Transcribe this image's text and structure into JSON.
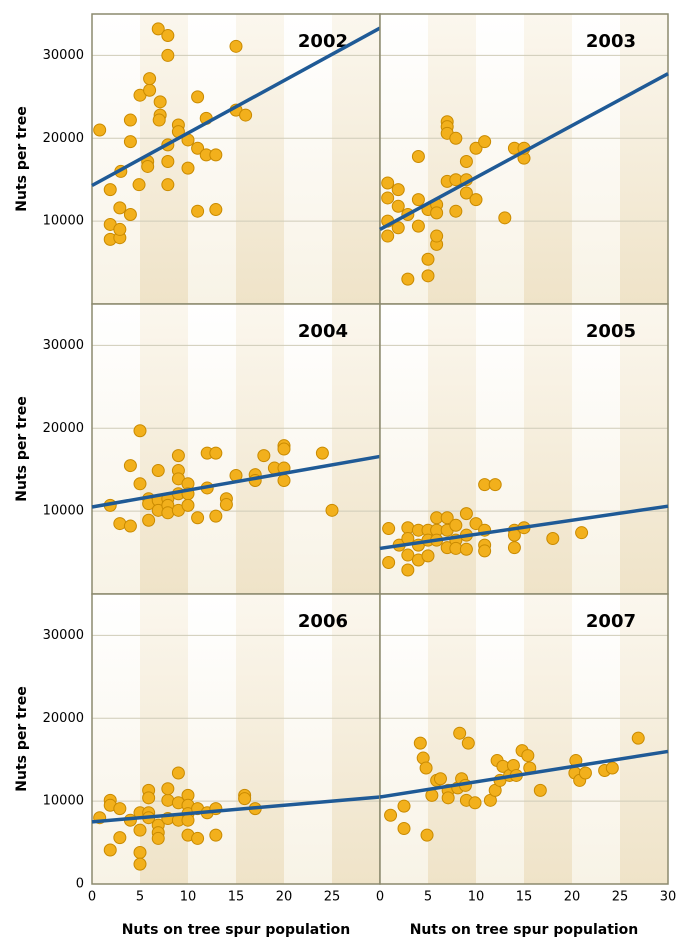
{
  "chart_data": [
    {
      "type": "scatter",
      "title": "2002",
      "ylabel": "Nuts per tree",
      "color": "#f2b01c",
      "grid": true,
      "xlim": [
        0,
        30
      ],
      "ylim": [
        0,
        35000
      ],
      "yticks": [
        10000,
        20000,
        30000
      ],
      "x": [
        0.8,
        1.9,
        1.9,
        1.9,
        2.9,
        2.9,
        2.9,
        3,
        4,
        4,
        4,
        4.9,
        5,
        5.8,
        5.8,
        6,
        6,
        6.9,
        7.1,
        7.1,
        7,
        7.9,
        7.9,
        7.9,
        7.9,
        7.9,
        9,
        9,
        10,
        10,
        11,
        11,
        11,
        11.9,
        11.9,
        12.9,
        12.9,
        15,
        15,
        16
      ],
      "values": [
        21000,
        13800,
        9600,
        7800,
        8000,
        9000,
        11600,
        16000,
        10800,
        22200,
        19600,
        14400,
        25200,
        17200,
        16600,
        25800,
        27200,
        33200,
        24400,
        22800,
        22200,
        32400,
        30000,
        14400,
        17200,
        19200,
        21600,
        20800,
        19800,
        16400,
        25000,
        11200,
        18800,
        18000,
        22400,
        18000,
        11400,
        31100,
        23400,
        22800
      ],
      "trend_line": {
        "color": "#1f5a96",
        "x": [
          0,
          30
        ],
        "values": [
          14300,
          33300
        ]
      }
    },
    {
      "type": "scatter",
      "title": "2003",
      "color": "#f2b01c",
      "grid": true,
      "xlim": [
        0,
        30
      ],
      "ylim": [
        0,
        35000
      ],
      "x": [
        0.8,
        0.8,
        0.8,
        0.8,
        1.9,
        1.9,
        1.9,
        2.9,
        2.9,
        4,
        4,
        4,
        5,
        5,
        5,
        5.9,
        5.9,
        5.9,
        5.9,
        7,
        7,
        7,
        7,
        7.9,
        7.9,
        7.9,
        9,
        9,
        9,
        10,
        10,
        10.9,
        13,
        14,
        15,
        15
      ],
      "values": [
        14600,
        12800,
        10000,
        8200,
        13800,
        11800,
        9200,
        3000,
        10800,
        17800,
        12600,
        9400,
        11400,
        5400,
        3400,
        12000,
        11000,
        7200,
        8200,
        22000,
        21400,
        20600,
        14800,
        20000,
        15000,
        11200,
        17200,
        15000,
        13400,
        18800,
        12600,
        19600,
        10400,
        18800,
        17600,
        18800
      ],
      "trend_line": {
        "color": "#1f5a96",
        "x": [
          0,
          30
        ],
        "values": [
          9000,
          27800
        ]
      }
    },
    {
      "type": "scatter",
      "title": "2004",
      "ylabel": "Nuts per tree",
      "color": "#f2b01c",
      "grid": true,
      "xlim": [
        0,
        30
      ],
      "ylim": [
        0,
        35000
      ],
      "yticks": [
        10000,
        20000,
        30000
      ],
      "x": [
        1.9,
        2.9,
        4,
        4,
        5,
        5,
        5.9,
        5.9,
        5.9,
        6.9,
        6.9,
        6.9,
        7.9,
        7.9,
        7.9,
        9,
        9,
        9,
        9,
        9,
        10,
        10,
        10,
        11,
        12,
        12,
        12.9,
        12.9,
        14,
        14,
        15,
        17,
        17,
        17.9,
        19,
        20,
        20,
        20,
        20,
        24,
        25
      ],
      "values": [
        10700,
        8500,
        8200,
        15500,
        19700,
        13300,
        11500,
        10900,
        8900,
        14900,
        11300,
        10100,
        11500,
        10700,
        9800,
        16700,
        14900,
        13900,
        12100,
        10100,
        13300,
        12100,
        10700,
        9200,
        12800,
        17000,
        17000,
        9400,
        11500,
        10800,
        14300,
        14400,
        13700,
        16700,
        15200,
        17900,
        17500,
        15200,
        13700,
        17000,
        10100
      ],
      "trend_line": {
        "color": "#1f5a96",
        "x": [
          0,
          30
        ],
        "values": [
          10500,
          16600
        ]
      }
    },
    {
      "type": "scatter",
      "title": "2005",
      "color": "#f2b01c",
      "grid": true,
      "xlim": [
        0,
        30
      ],
      "ylim": [
        0,
        35000
      ],
      "x": [
        0.9,
        0.9,
        2,
        2.9,
        2.9,
        2.9,
        2.9,
        4,
        4,
        4,
        5,
        5,
        5,
        5.9,
        5.9,
        5.9,
        7,
        7,
        7,
        7.9,
        7.9,
        7.9,
        9,
        9,
        9,
        10,
        10.9,
        10.9,
        10.9,
        10.9,
        12,
        14,
        14,
        14,
        15,
        18,
        21
      ],
      "values": [
        7900,
        3800,
        5900,
        8000,
        6700,
        4700,
        2900,
        7700,
        5900,
        4100,
        7700,
        6500,
        4600,
        9200,
        7700,
        6500,
        9200,
        7700,
        5600,
        8300,
        6500,
        5500,
        9700,
        7100,
        5400,
        8500,
        13200,
        7700,
        5900,
        5200,
        13200,
        7700,
        7100,
        5600,
        8000,
        6700,
        7400
      ],
      "trend_line": {
        "color": "#1f5a96",
        "x": [
          0,
          30
        ],
        "values": [
          5500,
          10600
        ]
      }
    },
    {
      "type": "scatter",
      "title": "2006",
      "ylabel": "Nuts per tree",
      "xlabel": "Nuts on tree spur population",
      "color": "#f2b01c",
      "grid": true,
      "xlim": [
        0,
        30
      ],
      "ylim": [
        0,
        35000
      ],
      "yticks": [
        0,
        10000,
        20000,
        30000
      ],
      "xticks": [
        0,
        5,
        10,
        15,
        20,
        25
      ],
      "x": [
        0.8,
        1.9,
        1.9,
        1.9,
        2.9,
        2.9,
        4,
        5,
        5,
        5,
        5,
        5.9,
        5.9,
        5.9,
        5.9,
        6.9,
        6.9,
        6.9,
        7.9,
        7.9,
        7.9,
        9,
        9,
        9,
        10,
        10,
        10,
        10,
        10,
        11,
        11,
        12,
        12.9,
        12.9,
        15.9,
        15.9,
        17
      ],
      "values": [
        8000,
        10100,
        9500,
        4100,
        9100,
        5600,
        7700,
        8600,
        6500,
        3800,
        2400,
        11300,
        10400,
        8600,
        8000,
        7100,
        6200,
        5500,
        10100,
        11500,
        7900,
        13400,
        9800,
        7700,
        10700,
        9500,
        8500,
        7700,
        5900,
        9100,
        5500,
        8600,
        9100,
        5900,
        10700,
        10300,
        9100
      ],
      "trend_line": {
        "color": "#1f5a96",
        "x": [
          0,
          30
        ],
        "values": [
          7500,
          10500
        ]
      }
    },
    {
      "type": "scatter",
      "title": "2007",
      "xlabel": "Nuts on tree spur population",
      "color": "#f2b01c",
      "grid": true,
      "xlim": [
        0,
        30
      ],
      "ylim": [
        0,
        35000
      ],
      "xticks": [
        0,
        5,
        10,
        15,
        20,
        25,
        30
      ],
      "x": [
        1.1,
        2.5,
        2.5,
        4.2,
        4.5,
        4.8,
        4.9,
        5.4,
        5.9,
        6.3,
        7.1,
        7.1,
        8.1,
        8.3,
        8.5,
        9.2,
        8.9,
        9,
        9.9,
        11.5,
        12,
        12.2,
        12.5,
        12.8,
        13.5,
        13.9,
        14.2,
        14.8,
        15.4,
        15.6,
        16.7,
        20.4,
        20.3,
        20.8,
        21.4,
        23.4,
        24.2,
        26.9
      ],
      "values": [
        8300,
        9400,
        6700,
        17000,
        15200,
        14000,
        5900,
        10700,
        12500,
        12700,
        11300,
        10400,
        11600,
        18200,
        12700,
        17000,
        11900,
        10100,
        9800,
        10100,
        11300,
        14900,
        12500,
        14200,
        13100,
        14300,
        13100,
        16100,
        15500,
        14000,
        11300,
        14900,
        13400,
        12500,
        13400,
        13700,
        14000,
        17600
      ],
      "trend_line": {
        "color": "#1f5a96",
        "x": [
          0,
          30
        ],
        "values": [
          10500,
          16000
        ]
      }
    }
  ]
}
